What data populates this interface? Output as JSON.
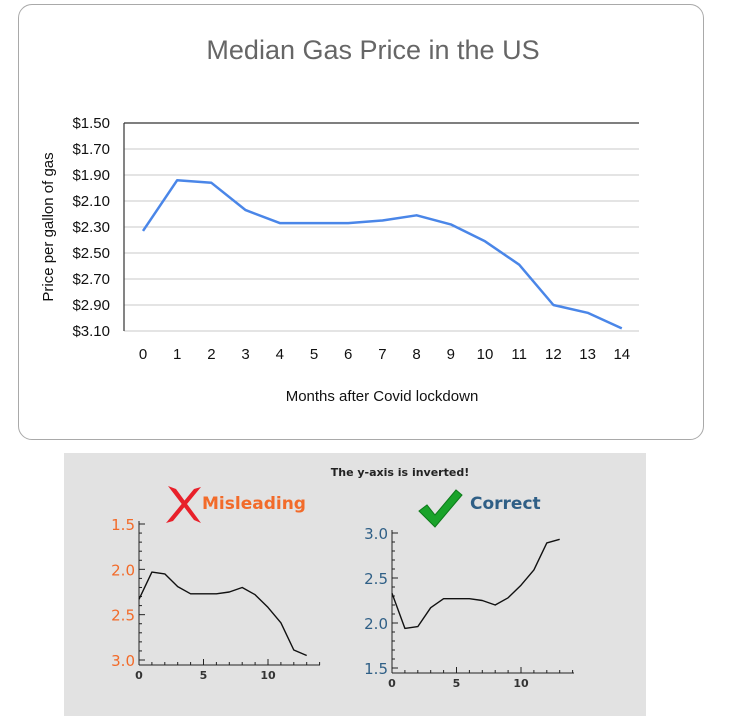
{
  "main_chart": {
    "title": "Median Gas Price in the US",
    "xlabel": "Months after Covid lockdown",
    "ylabel": "Price per gallon of gas",
    "series_color": "#4a86e8"
  },
  "panel": {
    "note": "The y-axis is inverted!",
    "left": {
      "heading": "Misleading",
      "heading_color": "#f26b2a",
      "mark_color": "#e8202a",
      "icon": "red-x-mark"
    },
    "right": {
      "heading": "Correct",
      "heading_color": "#2f5f86",
      "mark_color": "#1aa32a",
      "icon": "green-check-mark"
    }
  },
  "chart_data": [
    {
      "type": "line",
      "title": "Median Gas Price in the US",
      "xlabel": "Months after Covid lockdown",
      "ylabel": "Price per gallon of gas",
      "inverted_y": true,
      "ylim": [
        1.5,
        3.1
      ],
      "grid": true,
      "x": [
        0,
        1,
        2,
        3,
        4,
        5,
        6,
        7,
        8,
        9,
        10,
        11,
        12,
        13,
        14
      ],
      "values": [
        2.33,
        1.94,
        1.96,
        2.17,
        2.27,
        2.27,
        2.27,
        2.25,
        2.21,
        2.28,
        2.41,
        2.59,
        2.9,
        2.96,
        3.08
      ],
      "xticks": [
        "0",
        "1",
        "2",
        "3",
        "4",
        "5",
        "6",
        "7",
        "8",
        "9",
        "10",
        "11",
        "12",
        "13",
        "14"
      ],
      "yticks": [
        "$1.50",
        "$1.70",
        "$1.90",
        "$2.10",
        "$2.30",
        "$2.50",
        "$2.70",
        "$2.90",
        "$3.10"
      ],
      "ytick_values": [
        1.5,
        1.7,
        1.9,
        2.1,
        2.3,
        2.5,
        2.7,
        2.9,
        3.1
      ]
    },
    {
      "type": "line",
      "inverted_y": true,
      "ylim": [
        1.5,
        3.0
      ],
      "xlim": [
        0,
        14
      ],
      "x": [
        0,
        1,
        2,
        3,
        4,
        5,
        6,
        7,
        8,
        9,
        10,
        11,
        12,
        13
      ],
      "values": [
        2.33,
        2.03,
        2.05,
        2.19,
        2.27,
        2.27,
        2.27,
        2.25,
        2.2,
        2.28,
        2.42,
        2.59,
        2.89,
        2.95
      ],
      "xticks": [
        "0",
        "5",
        "10"
      ],
      "xtick_values": [
        0,
        5,
        10
      ],
      "yticks": [
        "1.5",
        "2.0",
        "2.5",
        "3.0"
      ],
      "ytick_values": [
        1.5,
        2.0,
        2.5,
        3.0
      ]
    },
    {
      "type": "line",
      "inverted_y": false,
      "ylim": [
        1.5,
        3.0
      ],
      "xlim": [
        0,
        14
      ],
      "x": [
        0,
        1,
        2,
        3,
        4,
        5,
        6,
        7,
        8,
        9,
        10,
        11,
        12,
        13
      ],
      "values": [
        2.33,
        1.94,
        1.96,
        2.17,
        2.27,
        2.27,
        2.27,
        2.25,
        2.2,
        2.28,
        2.42,
        2.59,
        2.89,
        2.93
      ],
      "xticks": [
        "0",
        "5",
        "10"
      ],
      "xtick_values": [
        0,
        5,
        10
      ],
      "yticks": [
        "1.5",
        "2.0",
        "2.5",
        "3.0"
      ],
      "ytick_values": [
        1.5,
        2.0,
        2.5,
        3.0
      ]
    }
  ]
}
